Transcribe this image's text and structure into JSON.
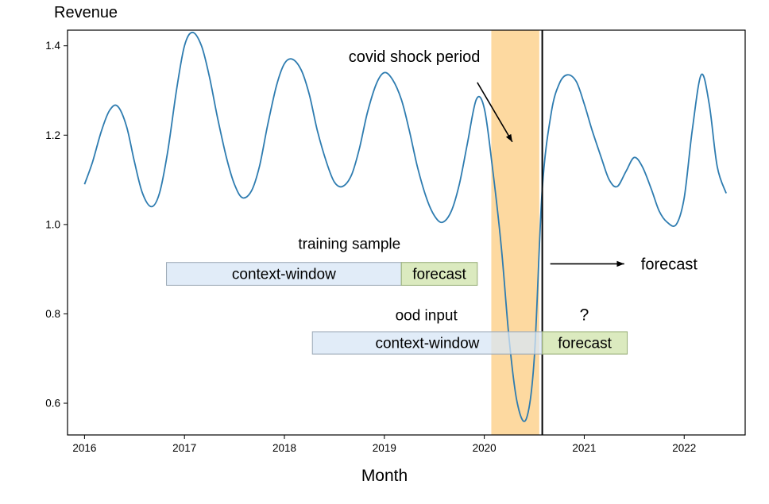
{
  "chart_data": {
    "type": "line",
    "title": "",
    "ylabel": "Revenue",
    "xlabel": "Month",
    "xlim": [
      2015.83,
      2022.61
    ],
    "ylim": [
      0.529,
      1.435
    ],
    "grid": false,
    "legend": "none",
    "x_ticks": [
      {
        "v": 2016,
        "label": "2016"
      },
      {
        "v": 2017,
        "label": "2017"
      },
      {
        "v": 2018,
        "label": "2018"
      },
      {
        "v": 2019,
        "label": "2019"
      },
      {
        "v": 2020,
        "label": "2020"
      },
      {
        "v": 2021,
        "label": "2021"
      },
      {
        "v": 2022,
        "label": "2022"
      }
    ],
    "y_ticks": [
      {
        "v": 0.6,
        "label": "0.6"
      },
      {
        "v": 0.8,
        "label": "0.8"
      },
      {
        "v": 1.0,
        "label": "1.0"
      },
      {
        "v": 1.2,
        "label": "1.2"
      },
      {
        "v": 1.4,
        "label": "1.4"
      }
    ],
    "colors": {
      "line": "#2e7cb0",
      "band": "#fdd9a0",
      "cutoff": "#000000",
      "context_fill": "rgba(215,230,245,0.75)",
      "context_border": "#9aa7b5",
      "forecast_fill": "rgba(213,230,180,0.85)",
      "forecast_border": "#97ad77"
    },
    "series": [
      {
        "name": "Revenue",
        "points": [
          [
            2016.0,
            1.09
          ],
          [
            2016.08,
            1.14
          ],
          [
            2016.17,
            1.21
          ],
          [
            2016.25,
            1.255
          ],
          [
            2016.33,
            1.265
          ],
          [
            2016.42,
            1.22
          ],
          [
            2016.5,
            1.14
          ],
          [
            2016.58,
            1.07
          ],
          [
            2016.67,
            1.04
          ],
          [
            2016.75,
            1.07
          ],
          [
            2016.83,
            1.16
          ],
          [
            2016.92,
            1.3
          ],
          [
            2017.0,
            1.4
          ],
          [
            2017.08,
            1.43
          ],
          [
            2017.17,
            1.4
          ],
          [
            2017.25,
            1.33
          ],
          [
            2017.33,
            1.24
          ],
          [
            2017.42,
            1.15
          ],
          [
            2017.5,
            1.09
          ],
          [
            2017.58,
            1.06
          ],
          [
            2017.67,
            1.075
          ],
          [
            2017.75,
            1.13
          ],
          [
            2017.83,
            1.22
          ],
          [
            2017.92,
            1.31
          ],
          [
            2018.0,
            1.36
          ],
          [
            2018.08,
            1.37
          ],
          [
            2018.17,
            1.345
          ],
          [
            2018.25,
            1.29
          ],
          [
            2018.33,
            1.21
          ],
          [
            2018.42,
            1.14
          ],
          [
            2018.5,
            1.095
          ],
          [
            2018.58,
            1.085
          ],
          [
            2018.67,
            1.11
          ],
          [
            2018.75,
            1.17
          ],
          [
            2018.83,
            1.25
          ],
          [
            2018.92,
            1.315
          ],
          [
            2019.0,
            1.34
          ],
          [
            2019.08,
            1.325
          ],
          [
            2019.17,
            1.28
          ],
          [
            2019.25,
            1.21
          ],
          [
            2019.33,
            1.13
          ],
          [
            2019.42,
            1.06
          ],
          [
            2019.5,
            1.02
          ],
          [
            2019.58,
            1.005
          ],
          [
            2019.67,
            1.03
          ],
          [
            2019.75,
            1.09
          ],
          [
            2019.83,
            1.18
          ],
          [
            2019.92,
            1.28
          ],
          [
            2020.0,
            1.26
          ],
          [
            2020.08,
            1.13
          ],
          [
            2020.17,
            0.95
          ],
          [
            2020.25,
            0.74
          ],
          [
            2020.33,
            0.6
          ],
          [
            2020.42,
            0.565
          ],
          [
            2020.5,
            0.7
          ],
          [
            2020.58,
            1.08
          ],
          [
            2020.67,
            1.25
          ],
          [
            2020.75,
            1.315
          ],
          [
            2020.83,
            1.335
          ],
          [
            2020.92,
            1.32
          ],
          [
            2021.0,
            1.27
          ],
          [
            2021.08,
            1.21
          ],
          [
            2021.17,
            1.15
          ],
          [
            2021.25,
            1.1
          ],
          [
            2021.33,
            1.085
          ],
          [
            2021.42,
            1.12
          ],
          [
            2021.5,
            1.15
          ],
          [
            2021.58,
            1.13
          ],
          [
            2021.67,
            1.08
          ],
          [
            2021.75,
            1.03
          ],
          [
            2021.83,
            1.005
          ],
          [
            2021.92,
            1.0
          ],
          [
            2022.0,
            1.06
          ],
          [
            2022.08,
            1.21
          ],
          [
            2022.17,
            1.335
          ],
          [
            2022.25,
            1.27
          ],
          [
            2022.33,
            1.13
          ],
          [
            2022.42,
            1.07
          ]
        ]
      }
    ],
    "shock_band": {
      "x0": 2020.07,
      "x1": 2020.55
    },
    "cutoff_line": {
      "x": 2020.58
    },
    "annotations": {
      "covid": {
        "label": "covid shock period",
        "label_x": 2019.3,
        "label_y": 1.378,
        "arrow_x1": 2019.93,
        "arrow_y1": 1.318,
        "arrow_x2": 2020.28,
        "arrow_y2": 1.185
      },
      "training": {
        "label": "training sample",
        "label_x": 2018.65,
        "label_y": 0.958,
        "y0": 0.864,
        "y1": 0.915,
        "context": {
          "label": "context-window",
          "x0": 2016.82,
          "x1": 2019.17
        },
        "forecast": {
          "label": "forecast",
          "x0": 2019.17,
          "x1": 2019.93
        }
      },
      "ood": {
        "label": "ood input",
        "label_x": 2019.42,
        "label_y": 0.798,
        "y0": 0.71,
        "y1": 0.76,
        "context": {
          "label": "context-window",
          "x0": 2018.28,
          "x1": 2020.58
        },
        "forecast": {
          "label": "forecast",
          "x0": 2020.58,
          "x1": 2021.43
        },
        "question": "?",
        "question_x": 2021.0,
        "question_y": 0.798
      },
      "forecast_arrow": {
        "label": "forecast",
        "x1": 2020.66,
        "x2": 2021.4,
        "y": 0.912,
        "label_x": 2021.85
      }
    }
  }
}
